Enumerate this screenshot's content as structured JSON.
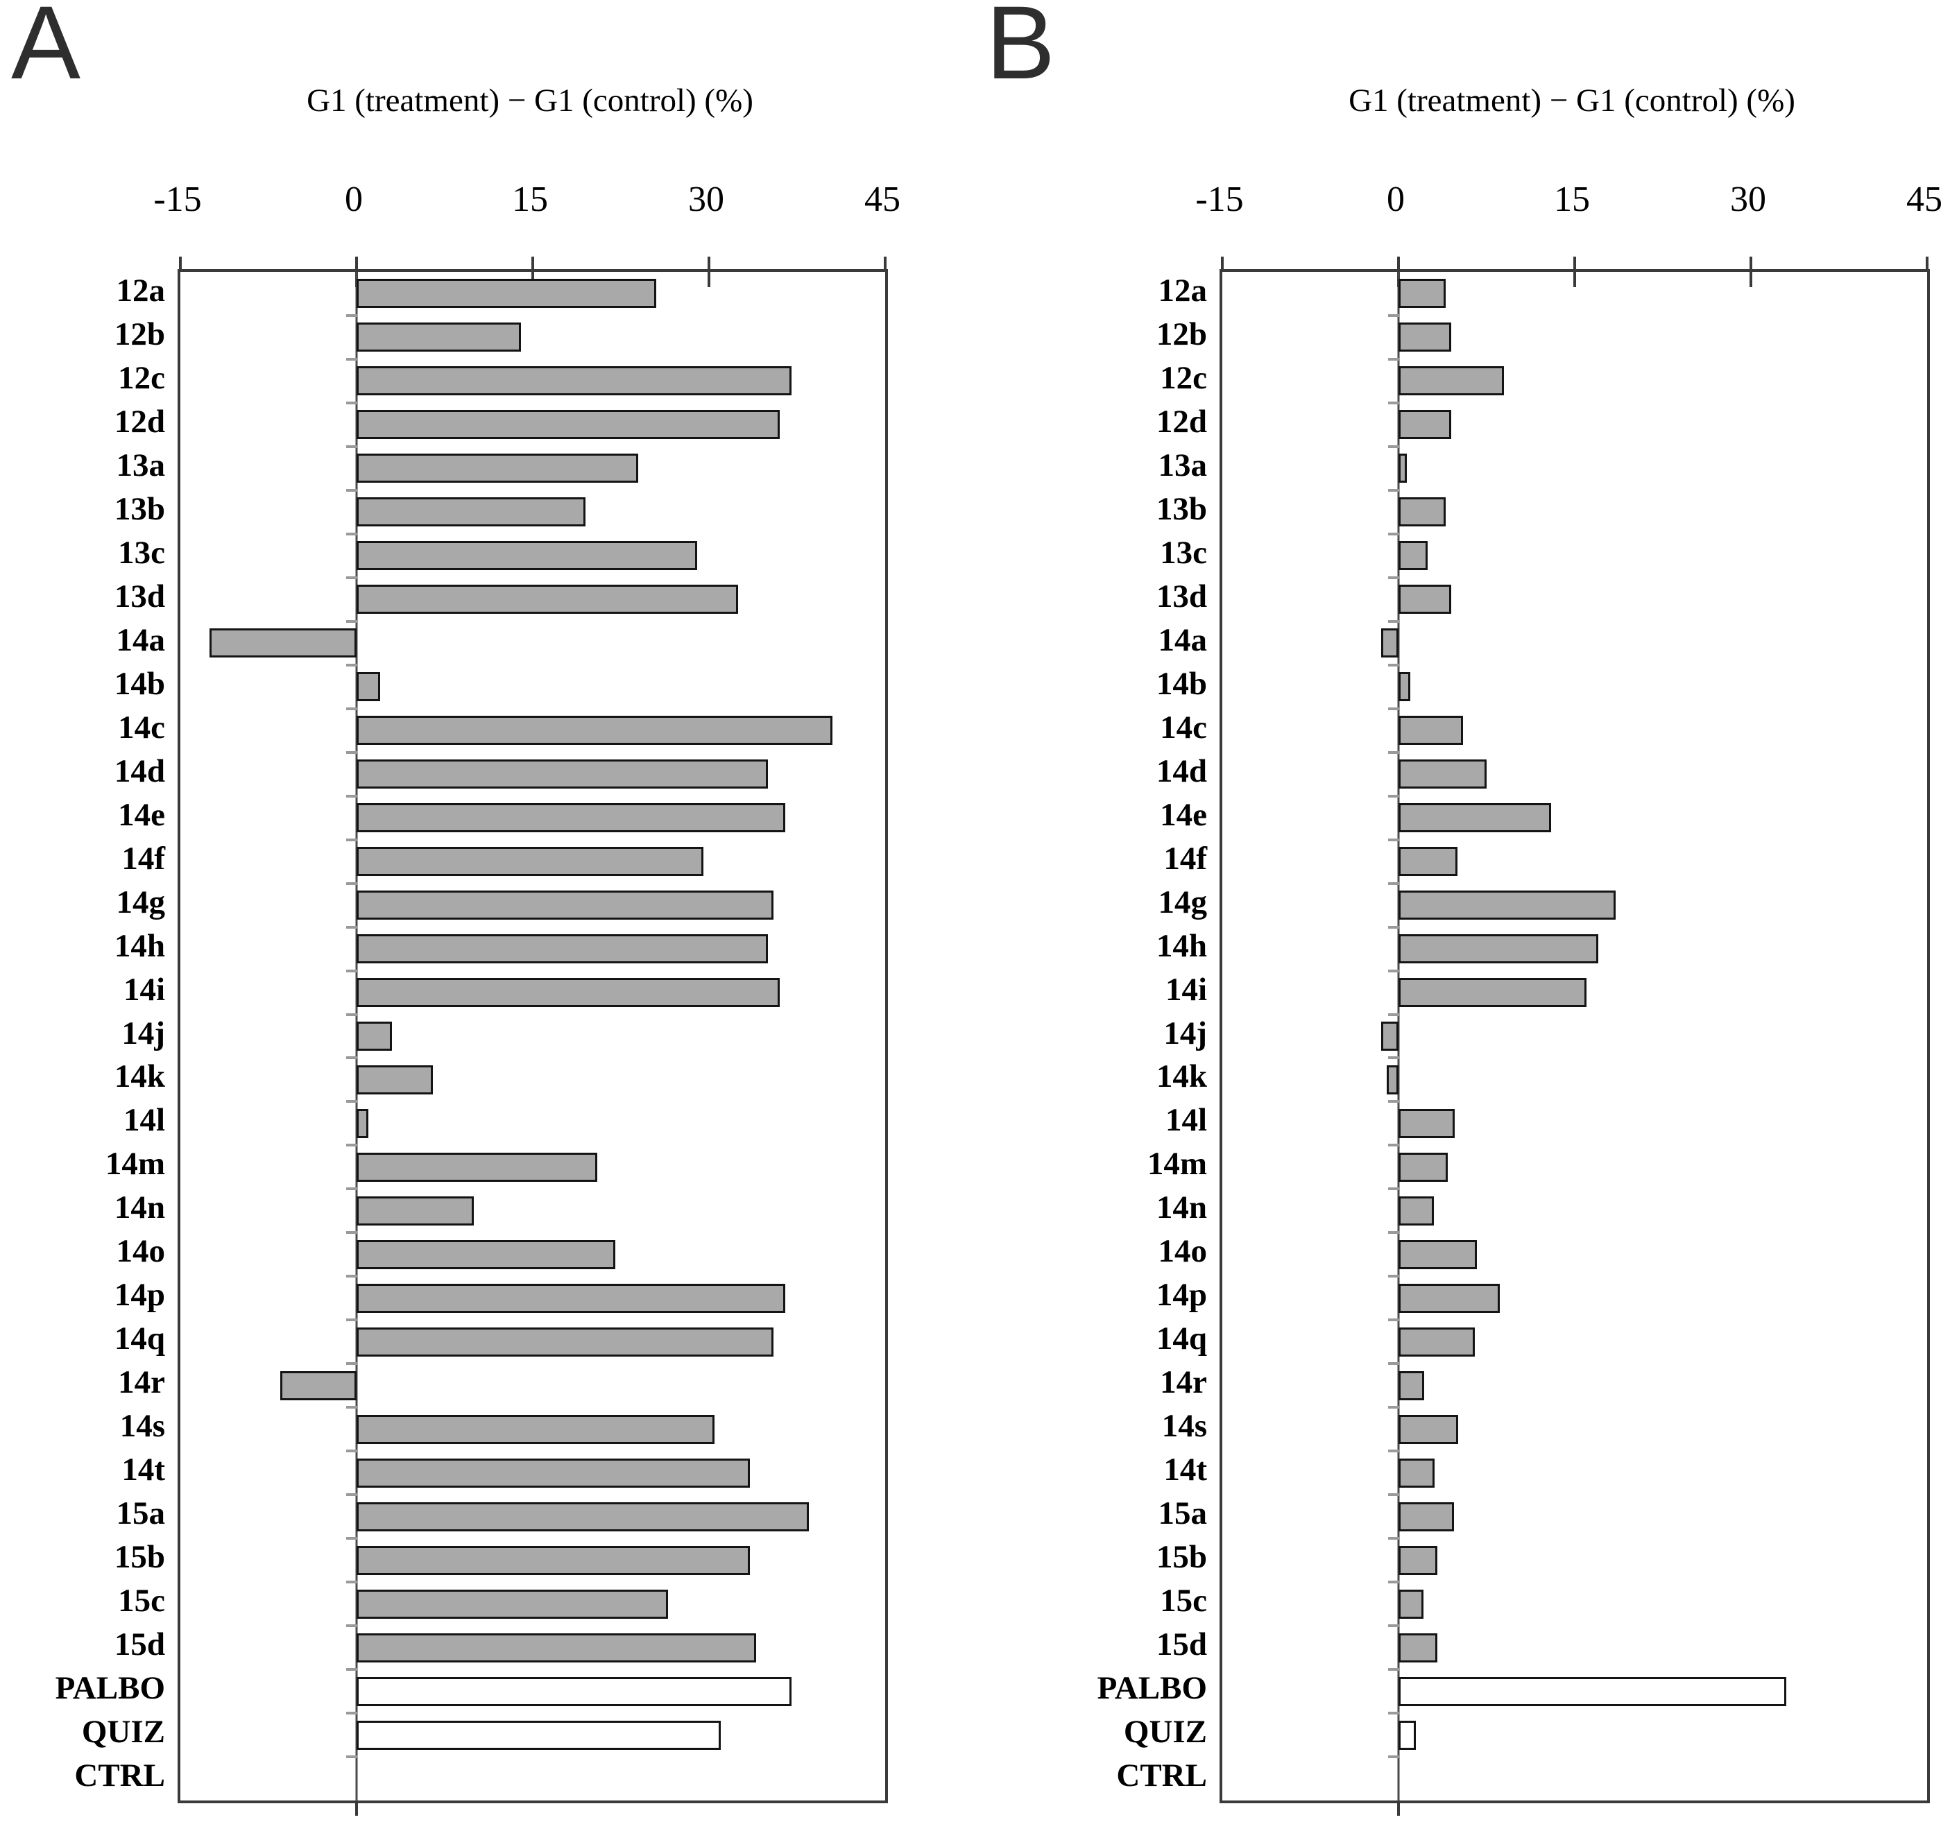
{
  "colors": {
    "bar_fill_gray": "#a9a9a9",
    "bar_fill_white": "#ffffff",
    "bar_border": "#141414",
    "frame": "#3a3a3a",
    "zero_axis": "#4a4a4a"
  },
  "chart_data": [
    {
      "type": "bar",
      "orientation": "horizontal",
      "panel_letter": "A",
      "title": "G1 (treatment) − G1 (control) (%)",
      "xlabel": "G1 (treatment) − G1 (control) (%)",
      "xlim": [
        -15,
        45
      ],
      "xticks": [
        -15,
        0,
        15,
        30,
        45
      ],
      "grid": false,
      "legend": "none",
      "white_bars": [
        "PALBO",
        "QUIZ"
      ],
      "categories": [
        "12a",
        "12b",
        "12c",
        "12d",
        "13a",
        "13b",
        "13c",
        "13d",
        "14a",
        "14b",
        "14c",
        "14d",
        "14e",
        "14f",
        "14g",
        "14h",
        "14i",
        "14j",
        "14k",
        "14l",
        "14m",
        "14n",
        "14o",
        "14p",
        "14q",
        "14r",
        "14s",
        "14t",
        "15a",
        "15b",
        "15c",
        "15d",
        "PALBO",
        "QUIZ",
        "CTRL"
      ],
      "values": [
        25.5,
        14,
        37,
        36,
        24,
        19.5,
        29,
        32.5,
        -12.5,
        2,
        40.5,
        35,
        36.5,
        29.5,
        35.5,
        35,
        36,
        3,
        6.5,
        1,
        20.5,
        10,
        22,
        36.5,
        35.5,
        -6.5,
        30.5,
        33.5,
        38.5,
        33.5,
        26.5,
        34,
        37,
        31,
        0
      ]
    },
    {
      "type": "bar",
      "orientation": "horizontal",
      "panel_letter": "B",
      "title": "G1 (treatment) − G1 (control) (%)",
      "xlabel": "G1 (treatment) − G1 (control) (%)",
      "xlim": [
        -15,
        45
      ],
      "xticks": [
        -15,
        0,
        15,
        30,
        45
      ],
      "grid": false,
      "legend": "none",
      "white_bars": [
        "PALBO",
        "QUIZ"
      ],
      "categories": [
        "12a",
        "12b",
        "12c",
        "12d",
        "13a",
        "13b",
        "13c",
        "13d",
        "14a",
        "14b",
        "14c",
        "14d",
        "14e",
        "14f",
        "14g",
        "14h",
        "14i",
        "14j",
        "14k",
        "14l",
        "14m",
        "14n",
        "14o",
        "14p",
        "14q",
        "14r",
        "14s",
        "14t",
        "15a",
        "15b",
        "15c",
        "15d",
        "PALBO",
        "QUIZ",
        "CTRL"
      ],
      "values": [
        4,
        4.5,
        9,
        4.5,
        0.7,
        4,
        2.5,
        4.5,
        -1.5,
        1,
        5.5,
        7.5,
        13,
        5,
        18.5,
        17,
        16,
        -1.5,
        -1,
        4.8,
        4.2,
        3,
        6.7,
        8.6,
        6.5,
        2.2,
        5.1,
        3.1,
        4.7,
        3.3,
        2.1,
        3.3,
        33,
        1.5,
        0
      ]
    }
  ]
}
